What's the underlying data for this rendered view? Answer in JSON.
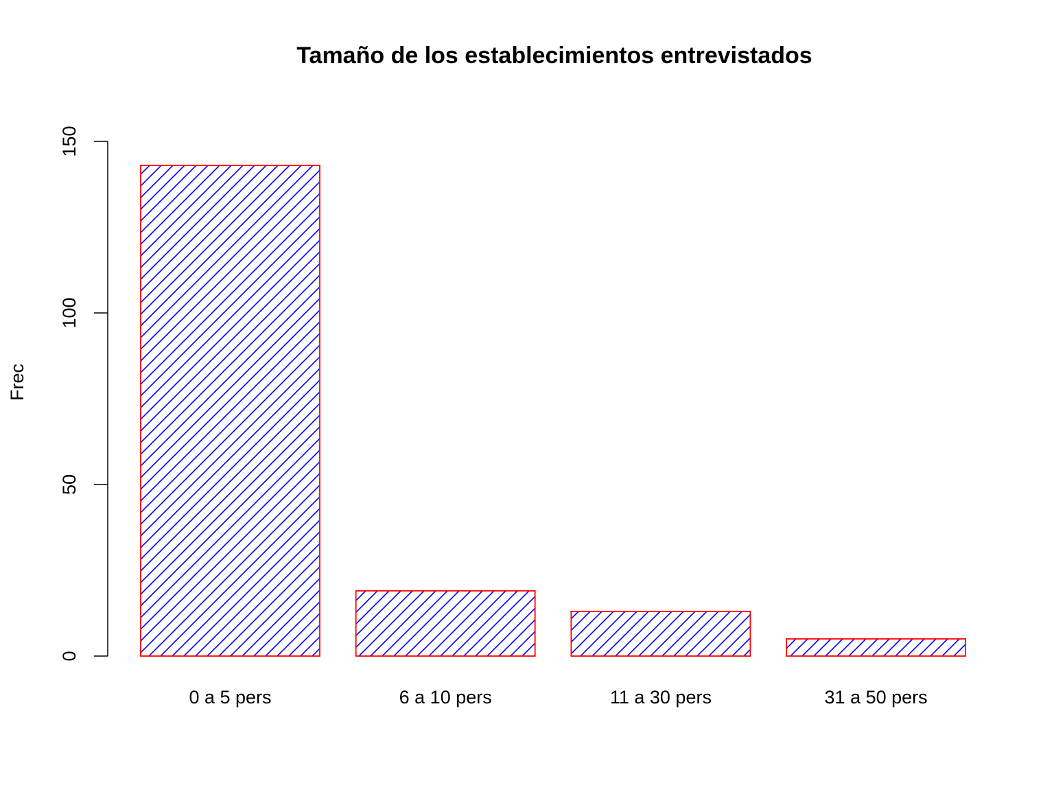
{
  "chart_data": {
    "type": "bar",
    "title": "Tamaño de los establecimientos entrevistados",
    "xlabel": "",
    "ylabel": "Frec",
    "categories": [
      "0 a 5 pers",
      "6 a 10 pers",
      "11 a 30 pers",
      "31 a 50 pers"
    ],
    "values": [
      143,
      19,
      13,
      5
    ],
    "ylim": [
      0,
      150
    ],
    "yticks": [
      0,
      50,
      100,
      150
    ],
    "grid": false,
    "legend": "none",
    "bar_fill": "diagonal hatch",
    "colors": {
      "border": "#ff0000",
      "hatch": "#0000ff",
      "axis": "#000000",
      "background": "#ffffff"
    }
  }
}
